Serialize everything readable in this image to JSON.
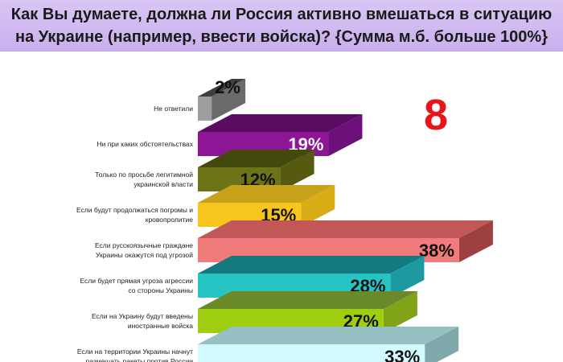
{
  "header": {
    "title_line1": "Как Вы думаете, должна ли Россия активно вмешаться в ситуацию",
    "title_line2": "на Украине (например, ввести войска)? {Сумма м.б. больше 100%}"
  },
  "badge": "8",
  "chart_data": {
    "type": "bar",
    "orientation": "horizontal",
    "style": "3d",
    "categories": [
      [
        "Не ответили"
      ],
      [
        "Ни при каких обстоятельствах"
      ],
      [
        "Только по просьбе легитимной",
        "украинской власти"
      ],
      [
        "Если будут продолжаться погромы и",
        "кровопролитие"
      ],
      [
        "Если русскоязычные граждане",
        "Украины окажутся под угрозой"
      ],
      [
        "Если будет прямая угроза агрессии",
        "со стороны Украины"
      ],
      [
        "Если на Украину будут введены",
        "иностранные войска"
      ],
      [
        "Если на территории Украины начнут",
        "размещать ракеты против России"
      ]
    ],
    "values": [
      2,
      19,
      12,
      15,
      38,
      28,
      27,
      33
    ],
    "value_labels": [
      "2%",
      "19%",
      "12%",
      "15%",
      "38%",
      "28%",
      "27%",
      "33%"
    ],
    "colors": [
      {
        "front": "#9e9e9e",
        "top": "#3e3e3e",
        "side": "#6a6a6a",
        "text": "#111111"
      },
      {
        "front": "#8e1596",
        "top": "#5a0c63",
        "side": "#6e107a",
        "text": "#ffffff"
      },
      {
        "front": "#6d7417",
        "top": "#43480c",
        "side": "#555a10",
        "text": "#111111"
      },
      {
        "front": "#f7c51d",
        "top": "#c9a21c",
        "side": "#d8ac15",
        "text": "#111111"
      },
      {
        "front": "#f07b7b",
        "top": "#c15757",
        "side": "#9c4040",
        "text": "#111111"
      },
      {
        "front": "#27c4c4",
        "top": "#147a80",
        "side": "#1c9aa0",
        "text": "#111111"
      },
      {
        "front": "#9fcd0f",
        "top": "#6a8a2a",
        "side": "#80a318",
        "text": "#111111"
      },
      {
        "front": "#d2fbff",
        "top": "#97c0c2",
        "side": "#7fa8ab",
        "text": "#111111"
      }
    ],
    "title": "",
    "xlabel": "",
    "ylabel": "",
    "xlim": [
      0,
      38
    ]
  }
}
